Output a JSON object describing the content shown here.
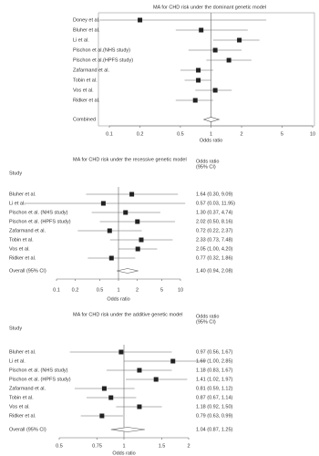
{
  "chart_data": [
    {
      "type": "forest",
      "title": "MA for CHD risk under the dominant genetic model",
      "categories": [
        "Doney et al.",
        "Bluher et al.",
        "Li et al.",
        "Pischon et al.(NHS study)",
        "Pischon et al.(HPFS study)",
        "Zafarmand et al.",
        "Tobin et al.",
        "Vos et al.",
        "Ridker et al."
      ],
      "values": [
        0.2,
        0.8,
        1.9,
        1.1,
        1.5,
        0.75,
        0.75,
        1.1,
        0.7
      ],
      "lower": [
        0.08,
        0.45,
        1.05,
        0.6,
        0.9,
        0.5,
        0.55,
        0.7,
        0.45
      ],
      "upper": [
        3.5,
        2.3,
        3.0,
        2.0,
        2.5,
        1.05,
        1.0,
        1.6,
        1.05
      ],
      "summary": {
        "label": "Combined",
        "value": 1.0,
        "lower": 0.85,
        "upper": 1.2
      },
      "xlabel": "Odds ratio",
      "log_x": true,
      "xlim": [
        0.1,
        10
      ],
      "xticks": [
        0.1,
        0.2,
        0.5,
        1,
        2,
        5,
        10
      ],
      "reference_line": 1,
      "color": "#222222"
    },
    {
      "type": "forest",
      "title": "MA for CHD risk under the recessive genetic model",
      "study_header": "Study",
      "estimate_header": [
        "Odds ratio",
        "(95% CI)"
      ],
      "categories": [
        "Bluher et al.",
        "Li et al.",
        "Pischon et al. (NHS study)",
        "Pischon et al. (HPFS study)",
        "Zafarmand et al.",
        "Tobin et al.",
        "Vos et al.",
        "Ridker et al."
      ],
      "values": [
        1.64,
        0.57,
        1.3,
        2.02,
        0.72,
        2.33,
        2.05,
        0.77
      ],
      "lower": [
        0.3,
        0.03,
        0.37,
        0.5,
        0.22,
        0.73,
        1.0,
        0.32
      ],
      "upper": [
        9.09,
        11.95,
        4.74,
        8.16,
        2.37,
        7.48,
        4.2,
        1.86
      ],
      "value_labels": [
        "1.64 (0.30, 9.09)",
        "0.57 (0.03, 11.95)",
        "1.30 (0.37, 4.74)",
        "2.02 (0.50, 8.16)",
        "0.72 (0.22, 2.37)",
        "2.33 (0.73, 7.48)",
        "2.05 (1.00, 4.20)",
        "0.77 (0.32, 1.86)"
      ],
      "summary": {
        "label": "Overall (95% CI)",
        "value": 1.4,
        "lower": 0.94,
        "upper": 2.08,
        "value_label": "1.40 (0.94, 2.08)"
      },
      "xlabel": "Odds ratio",
      "log_x": true,
      "xlim": [
        0.1,
        10
      ],
      "xticks": [
        0.1,
        0.2,
        0.5,
        1,
        2,
        5,
        10
      ],
      "reference_line": 1,
      "color": "#222222"
    },
    {
      "type": "forest",
      "title": "MA for CHD risk under the additive genetic model",
      "study_header": "Study",
      "estimate_header": [
        "Odds ratio",
        "(95% CI)"
      ],
      "categories": [
        "Bluher et al.",
        "Li et al.",
        "Pischon et al. (NHS study)",
        "Pischon et al. (HPFS study)",
        "Zafarmand et al.",
        "Tobin et al.",
        "Vos et al.",
        "Ridker et al."
      ],
      "values": [
        0.97,
        1.69,
        1.18,
        1.41,
        0.81,
        0.87,
        1.18,
        0.79
      ],
      "lower": [
        0.56,
        1.0,
        0.83,
        1.02,
        0.59,
        0.67,
        0.92,
        0.63
      ],
      "upper": [
        1.67,
        2.85,
        1.67,
        1.97,
        1.12,
        1.14,
        1.5,
        0.99
      ],
      "value_labels": [
        "0.97 (0.56, 1.67)",
        "1.69 (1.00, 2.85)",
        "1.18 (0.83, 1.67)",
        "1.41 (1.02, 1.97)",
        "0.81 (0.59, 1.12)",
        "0.87 (0.67, 1.14)",
        "1.18 (0.92, 1.50)",
        "0.79 (0.63, 0.99)"
      ],
      "summary": {
        "label": "Overall (95% CI)",
        "value": 1.04,
        "lower": 0.87,
        "upper": 1.25,
        "value_label": "1.04 (0.87, 1.25)"
      },
      "xlabel": "Odds ratio",
      "log_x": true,
      "xlim": [
        0.5,
        2
      ],
      "xticks": [
        0.5,
        0.75,
        1,
        1.5,
        2
      ],
      "reference_line": 1,
      "color": "#222222"
    }
  ]
}
